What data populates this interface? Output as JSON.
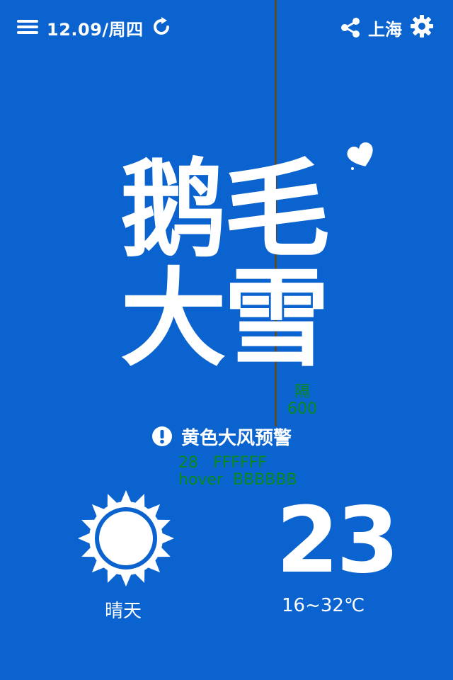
{
  "header": {
    "date": "12.09/周四",
    "city": "上海",
    "icons": [
      "menu-icon",
      "refresh-icon",
      "share-icon",
      "gear-icon"
    ]
  },
  "main": {
    "title_line1": "鹅毛",
    "title_line2": "大雪",
    "heart_icon": "heart-icon"
  },
  "annotations": {
    "spacing_note": "隔\n600",
    "style_note": "28   FFFFFF\nhover  BBBBBB"
  },
  "warning": {
    "icon": "alert-icon",
    "text": "黄色大风预警"
  },
  "weather": {
    "condition_icon": "sun-icon",
    "condition": "晴天",
    "temperature": "23",
    "range": "16~32℃"
  },
  "colors": {
    "background": "#0a63cf",
    "foreground": "#ffffff",
    "annotation": "#0b8a1e",
    "guide_line": "#5a4a2a",
    "hover": "#BBBBBB"
  }
}
